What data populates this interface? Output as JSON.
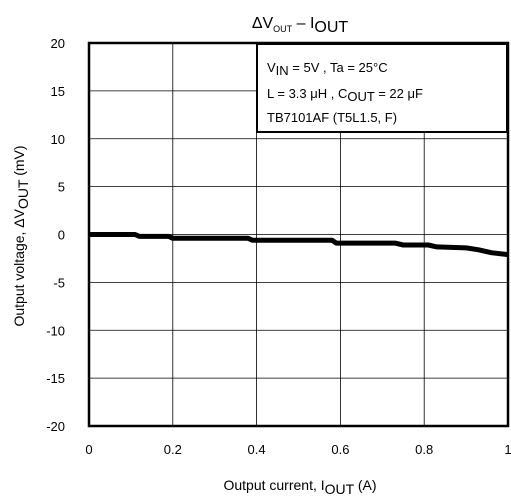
{
  "chart_data": {
    "type": "line",
    "title": {
      "main": "ΔV",
      "sub1": "OUT",
      "mid": " – I",
      "sub2": "OUT"
    },
    "xlabel": {
      "main": "Output current,   I",
      "sub": "OUT",
      "tail": "   (A)"
    },
    "ylabel": {
      "main": "Output voltage,   ΔV",
      "sub": "OUT",
      "tail": "   (mV)"
    },
    "xlim": [
      0,
      1
    ],
    "ylim": [
      -20,
      20
    ],
    "x_ticks": [
      "0",
      "0.2",
      "0.4",
      "0.6",
      "0.8",
      "1"
    ],
    "y_ticks": [
      "20",
      "15",
      "10",
      "5",
      "0",
      "-5",
      "-10",
      "-15",
      "-20"
    ],
    "grid": true,
    "legend_box": [
      {
        "a": "V",
        "as": "IN",
        "b": " = 5V , Ta = 25°C"
      },
      {
        "a": "L = 3.3 μH , C",
        "as": "OUT",
        "b": " = 22 μF"
      },
      {
        "a": "TB7101AF (T5L1.5, F)",
        "as": "",
        "b": ""
      }
    ],
    "series": [
      {
        "x": [
          0,
          0.05,
          0.11,
          0.12,
          0.19,
          0.2,
          0.38,
          0.39,
          0.58,
          0.59,
          0.73,
          0.75,
          0.81,
          0.83,
          0.9,
          0.93,
          0.96,
          1.0
        ],
        "y": [
          0,
          0,
          0,
          -0.2,
          -0.2,
          -0.4,
          -0.4,
          -0.6,
          -0.6,
          -0.9,
          -0.9,
          -1.1,
          -1.1,
          -1.3,
          -1.4,
          -1.6,
          -1.9,
          -2.1
        ]
      }
    ],
    "colors": {
      "line": "#000000",
      "grid": "#000000",
      "frame": "#000000"
    }
  }
}
